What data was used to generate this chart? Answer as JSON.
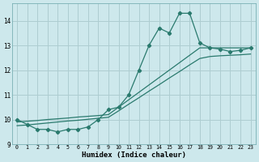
{
  "xlabel": "Humidex (Indice chaleur)",
  "bg_color": "#cde8ec",
  "grid_color": "#aecdd1",
  "line_color": "#2a7a6e",
  "xlim": [
    -0.5,
    23.5
  ],
  "ylim": [
    9.0,
    14.7
  ],
  "yticks": [
    9,
    10,
    11,
    12,
    13,
    14
  ],
  "xticks": [
    0,
    1,
    2,
    3,
    4,
    5,
    6,
    7,
    8,
    9,
    10,
    11,
    12,
    13,
    14,
    15,
    16,
    17,
    18,
    19,
    20,
    21,
    22,
    23
  ],
  "line1_x": [
    0,
    1,
    2,
    3,
    4,
    5,
    6,
    7,
    8,
    9,
    10,
    11,
    12,
    13,
    14,
    15,
    16,
    17,
    18,
    19,
    20,
    21,
    22,
    23
  ],
  "line1_y": [
    10.0,
    9.8,
    9.6,
    9.6,
    9.5,
    9.6,
    9.6,
    9.7,
    10.0,
    10.4,
    10.5,
    11.0,
    12.0,
    13.0,
    13.7,
    13.5,
    14.3,
    14.3,
    13.1,
    12.9,
    12.85,
    12.75,
    12.8,
    12.9
  ],
  "line2_x": [
    0,
    1,
    2,
    3,
    4,
    5,
    6,
    7,
    8,
    9,
    10,
    11,
    12,
    13,
    14,
    15,
    16,
    17,
    18,
    19,
    20,
    21,
    22,
    23
  ],
  "line2_y": [
    9.9,
    9.93,
    9.96,
    10.0,
    10.03,
    10.06,
    10.1,
    10.13,
    10.16,
    10.2,
    10.5,
    10.8,
    11.1,
    11.4,
    11.7,
    12.0,
    12.3,
    12.6,
    12.9,
    12.9,
    12.9,
    12.9,
    12.9,
    12.9
  ],
  "line3_x": [
    0,
    1,
    2,
    3,
    4,
    5,
    6,
    7,
    8,
    9,
    10,
    11,
    12,
    13,
    14,
    15,
    16,
    17,
    18,
    19,
    20,
    21,
    22,
    23
  ],
  "line3_y": [
    9.75,
    9.78,
    9.82,
    9.86,
    9.9,
    9.94,
    9.97,
    10.01,
    10.05,
    10.09,
    10.35,
    10.62,
    10.88,
    11.15,
    11.41,
    11.68,
    11.94,
    12.21,
    12.47,
    12.55,
    12.58,
    12.6,
    12.62,
    12.65
  ]
}
